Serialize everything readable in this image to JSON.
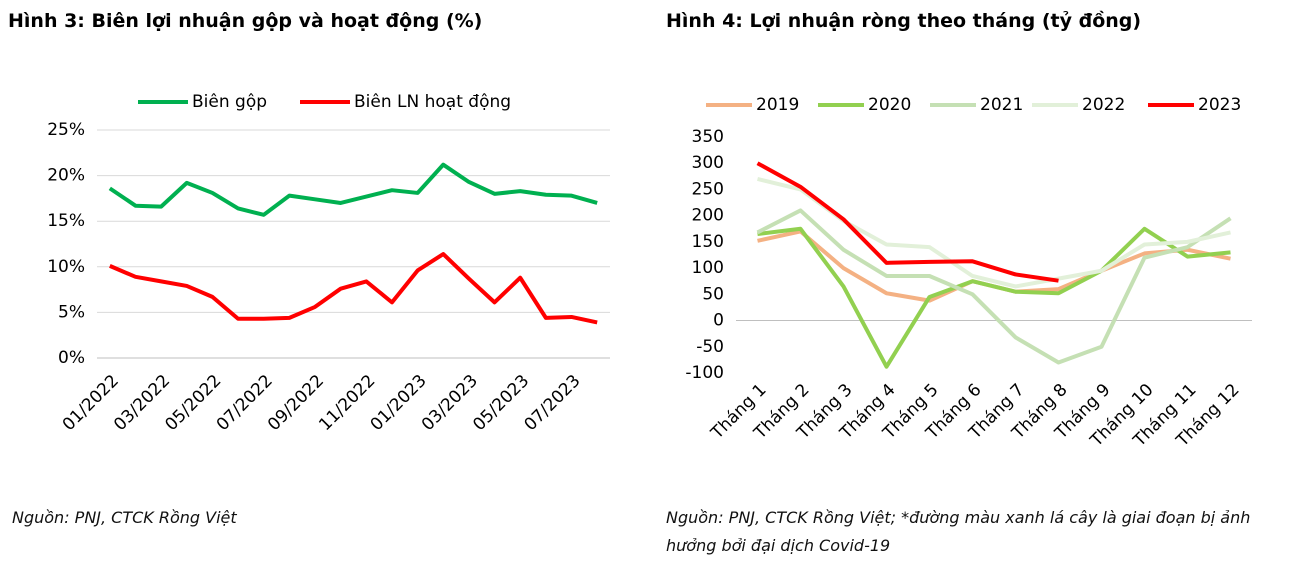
{
  "chart_data": [
    {
      "type": "line",
      "title": "Hình 3: Biên lợi nhuận gộp và hoạt động (%)",
      "source": "Nguồn: PNJ, CTCK Rồng Việt",
      "categories": [
        "01/2022",
        null,
        "03/2022",
        null,
        "05/2022",
        null,
        "07/2022",
        null,
        "09/2022",
        null,
        "11/2022",
        null,
        "01/2023",
        null,
        "03/2023",
        null,
        "05/2023",
        null,
        "07/2023",
        null
      ],
      "series": [
        {
          "name": "Biên gộp",
          "color": "#00b050",
          "values": [
            18.6,
            16.7,
            16.6,
            19.2,
            18.1,
            16.4,
            15.7,
            17.8,
            17.4,
            17.0,
            17.7,
            18.4,
            18.1,
            21.2,
            19.3,
            18.0,
            18.3,
            17.9,
            17.8,
            17.0
          ]
        },
        {
          "name": "Biên LN hoạt động",
          "color": "#ff0000",
          "values": [
            10.1,
            8.9,
            8.4,
            7.9,
            6.7,
            4.3,
            4.3,
            4.4,
            5.6,
            7.6,
            8.4,
            6.1,
            9.6,
            11.4,
            8.7,
            6.1,
            8.8,
            4.4,
            4.5,
            3.9
          ]
        }
      ],
      "ylim": [
        0,
        25
      ],
      "yticks": [
        {
          "value": 0,
          "label": "0%"
        },
        {
          "value": 5,
          "label": "5%"
        },
        {
          "value": 10,
          "label": "10%"
        },
        {
          "value": 15,
          "label": "15%"
        },
        {
          "value": 20,
          "label": "20%"
        },
        {
          "value": 25,
          "label": "25%"
        }
      ],
      "grid": true,
      "legend": "top"
    },
    {
      "type": "line",
      "title": "Hình 4: Lợi nhuận ròng theo tháng (tỷ đồng)",
      "source": "Nguồn: PNJ, CTCK Rồng Việt; *đường màu xanh lá cây là giai đoạn bị ảnh hưởng bởi đại dịch Covid-19",
      "categories": [
        "Tháng 1",
        "Tháng 2",
        "Tháng 3",
        "Tháng 4",
        "Tháng 5",
        "Tháng 6",
        "Tháng 7",
        "Tháng 8",
        "Tháng 9",
        "Tháng 10",
        "Tháng 11",
        "Tháng 12"
      ],
      "series": [
        {
          "name": "2019",
          "color": "#f4b183",
          "values": [
            152,
            170,
            100,
            52,
            38,
            75,
            55,
            60,
            95,
            128,
            135,
            118
          ]
        },
        {
          "name": "2020",
          "color": "#92d050",
          "values": [
            165,
            175,
            65,
            -88,
            45,
            75,
            55,
            52,
            95,
            175,
            122,
            130
          ]
        },
        {
          "name": "2021",
          "color": "#c5e0b4",
          "values": [
            168,
            210,
            135,
            85,
            85,
            50,
            -32,
            -80,
            -50,
            120,
            140,
            195
          ]
        },
        {
          "name": "2022",
          "color": "#e2f0d9",
          "values": [
            270,
            250,
            190,
            145,
            140,
            85,
            65,
            80,
            95,
            145,
            150,
            168
          ]
        },
        {
          "name": "2023",
          "color": "#ff0000",
          "values": [
            300,
            255,
            193,
            110,
            112,
            113,
            88,
            76,
            null,
            null,
            null,
            null
          ]
        }
      ],
      "ylim": [
        -100,
        350
      ],
      "yticks": [
        -100,
        -50,
        0,
        50,
        100,
        150,
        200,
        250,
        300,
        350
      ],
      "grid": false,
      "legend": "top"
    }
  ]
}
